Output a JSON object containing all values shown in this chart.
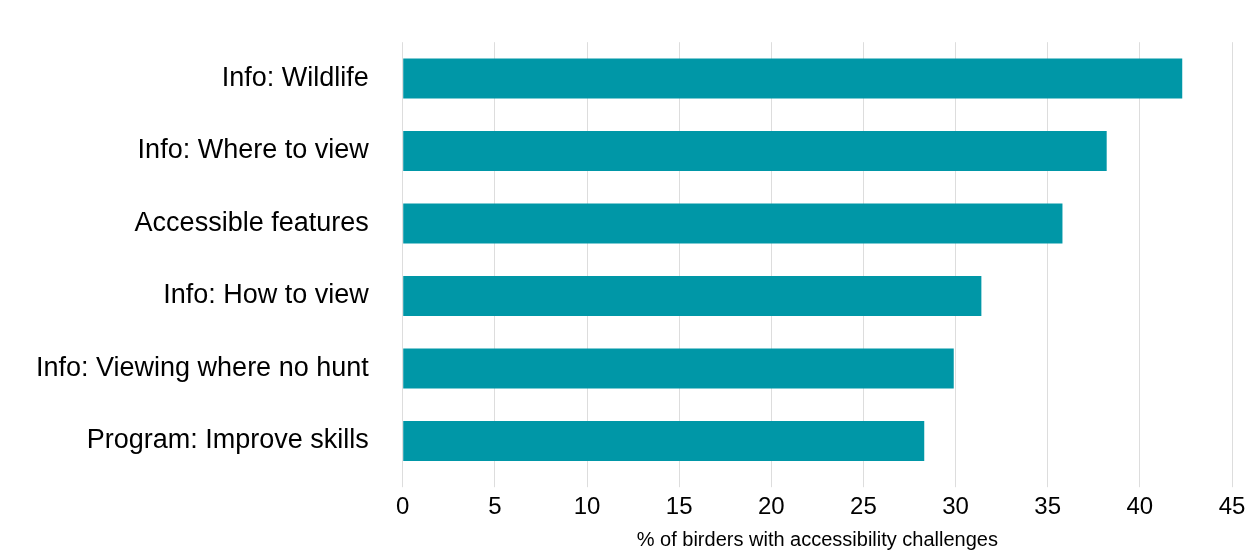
{
  "chart_data": {
    "type": "bar",
    "orientation": "horizontal",
    "xlabel": "% of birders with accessibility challenges",
    "categories": [
      "Info: Wildlife",
      "Info: Where to view",
      "Accessible features",
      "Info: How to view",
      "Info: Viewing where no hunt",
      "Program: Improve skills"
    ],
    "values": [
      42.3,
      38.2,
      35.8,
      31.4,
      29.9,
      28.3
    ],
    "color": "#0097a7",
    "xlim": [
      0,
      45
    ],
    "xticks": [
      0,
      5,
      10,
      15,
      20,
      25,
      30,
      35,
      40,
      45
    ],
    "grid": "x"
  }
}
